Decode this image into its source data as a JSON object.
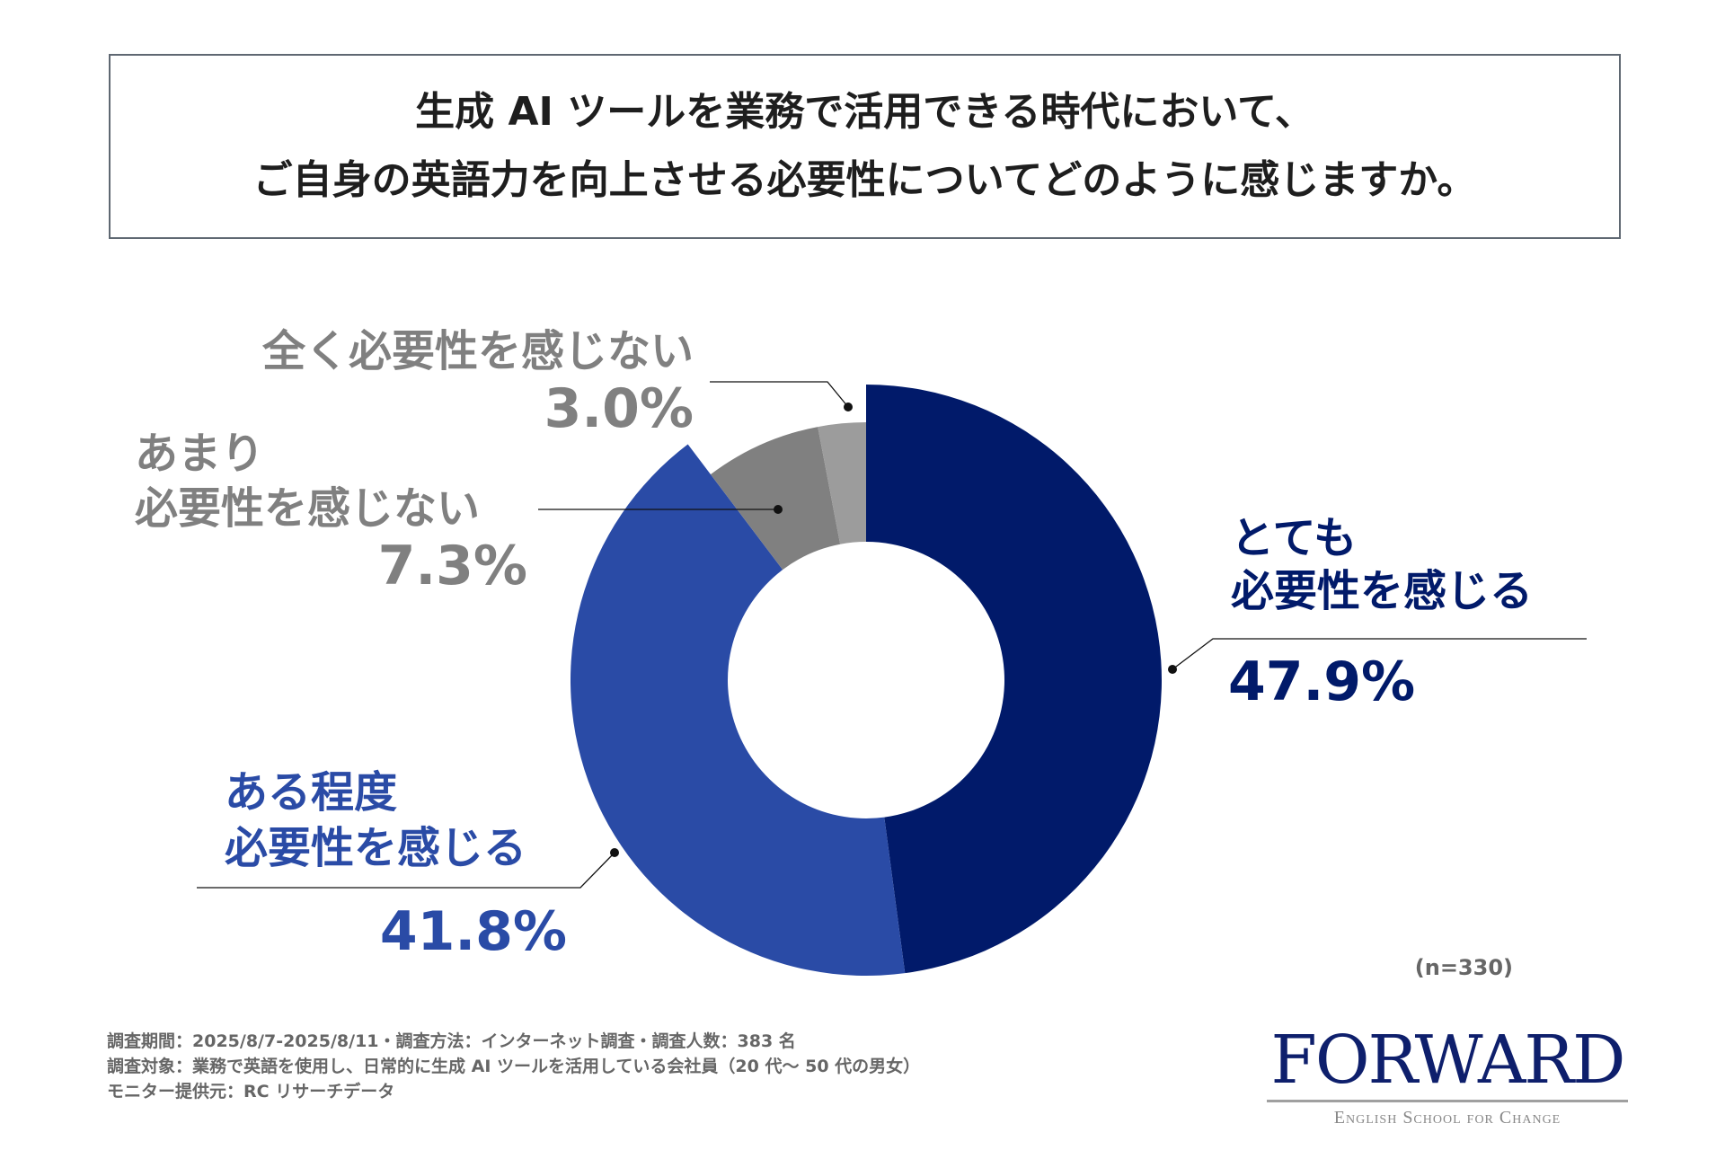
{
  "title": {
    "line1": "生成 AI ツールを業務で活用できる時代において、",
    "line2": "ご自身の英語力を向上させる必要性についてどのように感じますか。"
  },
  "chart_data": {
    "type": "pie",
    "variant": "donut",
    "start": "top",
    "direction": "clockwise",
    "slices": [
      {
        "label_line1": "とても",
        "label_line2": "必要性を感じる",
        "value": 47.9,
        "value_label": "47.9%",
        "color": "#011a6a"
      },
      {
        "label_line1": "ある程度",
        "label_line2": "必要性を感じる",
        "value": 41.8,
        "value_label": "41.8%",
        "color": "#2a4ba6"
      },
      {
        "label_line1": "あまり",
        "label_line2": "必要性を感じない",
        "value": 7.3,
        "value_label": "7.3%",
        "color": "#808080"
      },
      {
        "label_line1": "",
        "label_line2": "全く必要性を感じない",
        "value": 3.0,
        "value_label": "3.0%",
        "color": "#9c9c9c"
      }
    ],
    "sample_size": "(n=330)"
  },
  "footer": {
    "line1": "調査期間：2025/8/7-2025/8/11・調査方法：インターネット調査・調査人数：383 名",
    "line2": "調査対象：業務で英語を使用し、日常的に生成 AI ツールを活用している会社員（20 代～ 50 代の男女）",
    "line3": "モニター提供元：RC リサーチデータ"
  },
  "logo": {
    "main": "FORWARD",
    "sub": "English School for Change"
  }
}
